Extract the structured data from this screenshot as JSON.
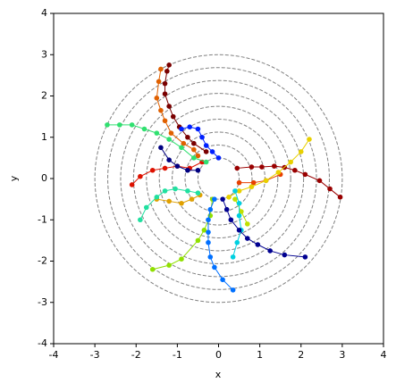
{
  "chart_data": {
    "type": "scatter",
    "xlabel": "x",
    "ylabel": "y",
    "xlim": [
      -4,
      4
    ],
    "ylim": [
      -4,
      4
    ],
    "xticks": [
      -4,
      -3,
      -2,
      -1,
      0,
      1,
      2,
      3,
      4
    ],
    "yticks": [
      -4,
      -3,
      -2,
      -1,
      0,
      1,
      2,
      3,
      4
    ],
    "circles": {
      "color": "#808080",
      "radii": [
        0.5,
        0.8125,
        1.125,
        1.4375,
        1.75,
        2.0625,
        2.375,
        2.6875,
        3.0
      ]
    },
    "series": [
      {
        "color": "#990000",
        "x": [
          0.45,
          0.8,
          1.05,
          1.35,
          1.6,
          1.85,
          2.1,
          2.45,
          2.7,
          2.95
        ],
        "y": [
          0.25,
          0.28,
          0.28,
          0.3,
          0.27,
          0.2,
          0.1,
          -0.05,
          -0.25,
          -0.45
        ]
      },
      {
        "color": "#dd1100",
        "x": [
          -2.1,
          -1.9,
          -1.6,
          -1.3,
          -1.0,
          -0.7,
          -0.4
        ],
        "y": [
          -0.15,
          0.05,
          0.2,
          0.25,
          0.3,
          0.25,
          0.4
        ]
      },
      {
        "color": "#7a0000",
        "x": [
          -1.2,
          -1.25,
          -1.3,
          -1.3,
          -1.2,
          -1.1,
          -0.95,
          -0.75,
          -0.6,
          -0.3
        ],
        "y": [
          2.75,
          2.6,
          2.3,
          2.05,
          1.75,
          1.5,
          1.25,
          1.0,
          0.85,
          0.65
        ]
      },
      {
        "color": "#e06000",
        "x": [
          -1.4,
          -1.45,
          -1.5,
          -1.4,
          -1.3,
          -1.15,
          -0.85,
          -0.6,
          -0.5
        ],
        "y": [
          2.65,
          2.35,
          1.95,
          1.65,
          1.4,
          1.1,
          0.85,
          0.7,
          0.55
        ]
      },
      {
        "color": "#e84000",
        "x": [
          0.5,
          0.85,
          1.15,
          1.5
        ],
        "y": [
          -0.1,
          -0.1,
          -0.05,
          0.1
        ]
      },
      {
        "color": "#e8d000",
        "x": [
          2.2,
          2.0,
          1.75,
          1.45,
          1.15,
          0.8,
          0.5,
          0.25
        ],
        "y": [
          0.95,
          0.65,
          0.4,
          0.15,
          -0.05,
          -0.2,
          -0.3,
          -0.45
        ]
      },
      {
        "color": "#e0a000",
        "x": [
          -1.5,
          -1.2,
          -0.9,
          -0.65,
          -0.45
        ],
        "y": [
          -0.5,
          -0.55,
          -0.6,
          -0.5,
          -0.4
        ]
      },
      {
        "color": "#90e000",
        "x": [
          -1.6,
          -1.2,
          -0.9,
          -0.5,
          -0.35,
          -0.2,
          -0.15
        ],
        "y": [
          -2.2,
          -2.1,
          -1.95,
          -1.5,
          -1.25,
          -0.9,
          -0.5
        ]
      },
      {
        "color": "#c0e000",
        "x": [
          0.4,
          0.55,
          0.7
        ],
        "y": [
          -0.5,
          -0.8,
          -1.1
        ]
      },
      {
        "color": "#30e070",
        "x": [
          -2.7,
          -2.4,
          -2.1,
          -1.8,
          -1.5,
          -1.2,
          -0.9,
          -0.6,
          -0.3
        ],
        "y": [
          1.3,
          1.3,
          1.3,
          1.2,
          1.1,
          0.95,
          0.75,
          0.5,
          0.4
        ]
      },
      {
        "color": "#20e0a0",
        "x": [
          -1.9,
          -1.75,
          -1.5,
          -1.3,
          -1.05,
          -0.75,
          -0.5
        ],
        "y": [
          -1.0,
          -0.7,
          -0.45,
          -0.3,
          -0.25,
          -0.3,
          -0.35
        ]
      },
      {
        "color": "#00d0e0",
        "x": [
          0.35,
          0.45,
          0.55,
          0.5,
          0.5,
          0.4
        ],
        "y": [
          -1.9,
          -1.55,
          -1.25,
          -0.9,
          -0.6,
          -0.3
        ]
      },
      {
        "color": "#0070ff",
        "x": [
          0.35,
          0.1,
          -0.1,
          -0.2,
          -0.25,
          -0.25,
          -0.25,
          -0.2,
          -0.1
        ],
        "y": [
          -2.7,
          -2.45,
          -2.15,
          -1.9,
          -1.55,
          -1.3,
          -1.0,
          -0.75,
          -0.5
        ]
      },
      {
        "color": "#0020ff",
        "x": [
          -0.9,
          -0.7,
          -0.5,
          -0.4,
          -0.3,
          -0.15,
          0.0
        ],
        "y": [
          1.2,
          1.25,
          1.2,
          1.0,
          0.8,
          0.65,
          0.5
        ]
      },
      {
        "color": "#000090",
        "x": [
          2.1,
          1.6,
          1.25,
          0.95,
          0.7,
          0.5,
          0.3,
          0.2,
          0.1
        ],
        "y": [
          -1.9,
          -1.85,
          -1.75,
          -1.6,
          -1.45,
          -1.25,
          -1.0,
          -0.75,
          -0.5
        ]
      },
      {
        "color": "#000080",
        "x": [
          -1.4,
          -1.2,
          -1.0,
          -0.75,
          -0.5
        ],
        "y": [
          0.75,
          0.45,
          0.3,
          0.2,
          0.2
        ]
      }
    ]
  }
}
